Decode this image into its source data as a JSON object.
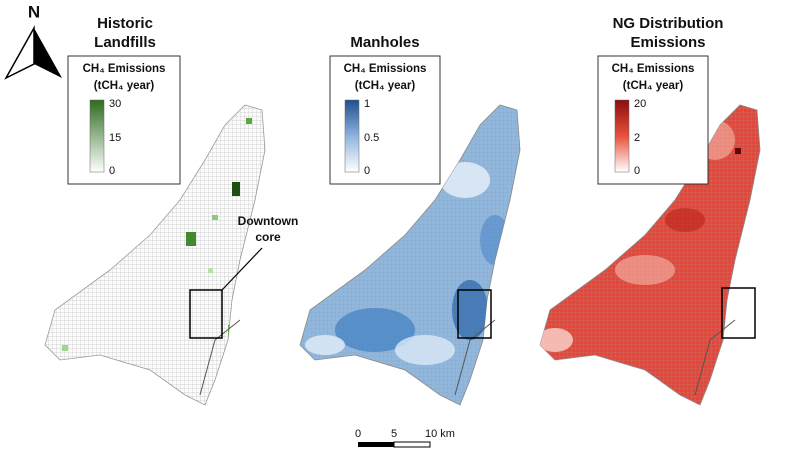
{
  "north_arrow": {
    "label": "N"
  },
  "panels": [
    {
      "title_lines": [
        "Historic",
        "Landfills"
      ],
      "legend": {
        "title_lines": [
          "CH₄ Emissions",
          "(tCH₄ year)"
        ],
        "ticks": [
          "30",
          "15",
          "0"
        ]
      }
    },
    {
      "title_lines": [
        "Manholes"
      ],
      "legend": {
        "title_lines": [
          "CH₄ Emissions",
          "(tCH₄ year)"
        ],
        "ticks": [
          "1",
          "0.5",
          "0"
        ]
      }
    },
    {
      "title_lines": [
        "NG Distribution",
        "Emissions"
      ],
      "legend": {
        "title_lines": [
          "CH₄ Emissions",
          "(tCH₄ year)"
        ],
        "ticks": [
          "20",
          "2",
          "0"
        ]
      }
    }
  ],
  "annotation": {
    "lines": [
      "Downtown",
      "core"
    ]
  },
  "scale_bar": {
    "labels": [
      "0",
      "5",
      "10 km"
    ]
  }
}
